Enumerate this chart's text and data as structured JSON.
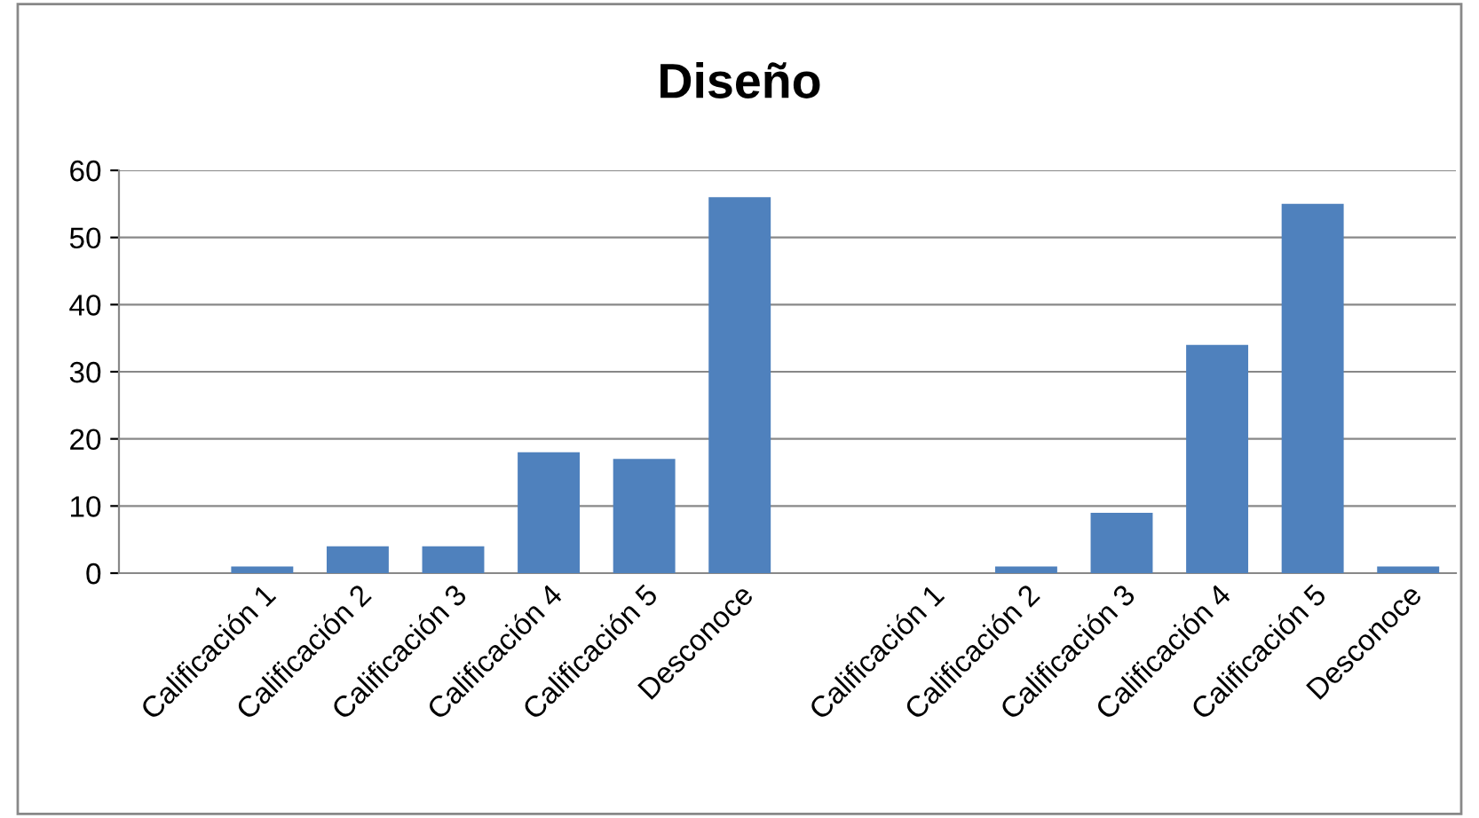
{
  "chart_data": {
    "type": "bar",
    "title": "Diseño",
    "categories": [
      null,
      "Calificación 1",
      "Calificación 2",
      "Calificación 3",
      "Calificación 4",
      "Calificación 5",
      "Desconoce",
      null,
      "Calificación 1",
      "Calificación 2",
      "Calificación 3",
      "Calificación 4",
      "Calificación 5",
      "Desconoce"
    ],
    "values": [
      0,
      1,
      4,
      4,
      18,
      17,
      56,
      0,
      0,
      1,
      9,
      34,
      55,
      1
    ],
    "color": "#4f81bd",
    "ylim": [
      0,
      60
    ],
    "yticks": [
      0,
      10,
      20,
      30,
      40,
      50,
      60
    ],
    "grid": "y",
    "legend": false
  }
}
